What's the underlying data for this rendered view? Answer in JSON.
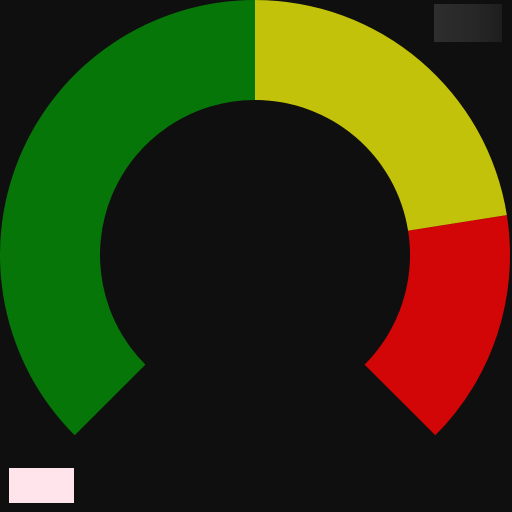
{
  "gauge": {
    "segments": [
      {
        "name": "green-segment",
        "color": "#077609",
        "from": 0.0,
        "to": 0.5
      },
      {
        "name": "yellow-segment",
        "color": "#c2c20a",
        "from": 0.5,
        "to": 0.8
      },
      {
        "name": "red-segment",
        "color": "#d20606",
        "from": 0.8,
        "to": 1.0
      }
    ]
  },
  "overlay": {
    "corner_chip_color": "#2a2a2a",
    "legend_swatch_color": "#ffe4ec"
  }
}
